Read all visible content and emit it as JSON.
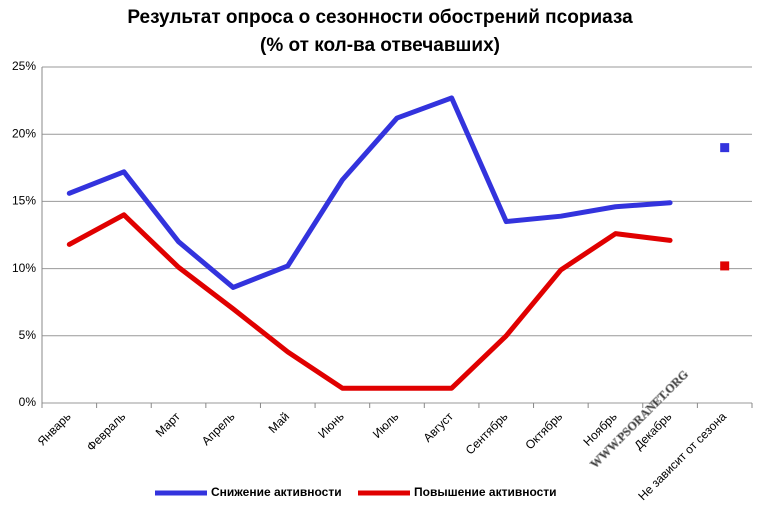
{
  "chart_data": {
    "type": "line",
    "title": "Результат опроса о сезонности обострений псориаза",
    "subtitle": "(% от кол-ва отвечавших)",
    "categories": [
      "Январь",
      "Февраль",
      "Март",
      "Апрель",
      "Май",
      "Июнь",
      "Июль",
      "Август",
      "Сентябрь",
      "Октябрь",
      "Ноябрь",
      "Декабрь",
      "Не зависит от сезона"
    ],
    "series": [
      {
        "name": "Снижение активности",
        "color": "#3333dd",
        "values": [
          15.6,
          17.2,
          12.0,
          8.6,
          10.2,
          16.6,
          21.2,
          22.7,
          13.5,
          13.9,
          14.6,
          14.9,
          19.0
        ]
      },
      {
        "name": "Повышение активности",
        "color": "#e00000",
        "values": [
          11.8,
          14.0,
          10.1,
          7.0,
          3.8,
          1.1,
          1.1,
          1.1,
          5.0,
          9.9,
          12.6,
          12.1,
          10.2
        ]
      }
    ],
    "ylim": [
      0,
      25
    ],
    "yticks": [
      {
        "value": 0,
        "label": "0%"
      },
      {
        "value": 5,
        "label": "5%"
      },
      {
        "value": 10,
        "label": "10%"
      },
      {
        "value": 15,
        "label": "15%"
      },
      {
        "value": 20,
        "label": "20%"
      },
      {
        "value": 25,
        "label": "25%"
      }
    ],
    "grid": true,
    "legend": "bottom",
    "watermark": "WWW.PSORANET.ORG"
  }
}
